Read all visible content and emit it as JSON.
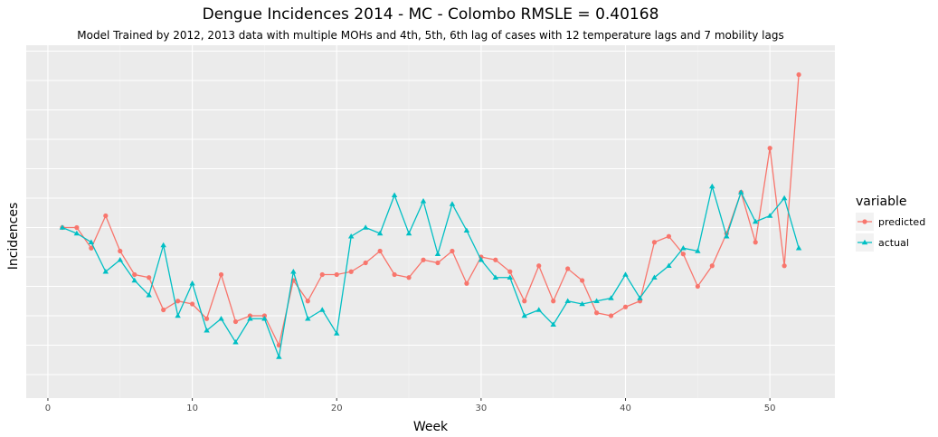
{
  "chart_data": {
    "type": "line",
    "title": "Dengue Incidences 2014 -  MC - Colombo  RMSLE =  0.40168",
    "subtitle": "Model Trained by 2012, 2013 data with multiple MOHs and 4th, 5th, 6th lag of cases with 12 temperature lags and 7 mobility lags",
    "xlabel": "Week",
    "ylabel": "Incidences",
    "xlim": [
      -1.5,
      54.5
    ],
    "ylim": [
      -0.8,
      11.2
    ],
    "x_ticks": [
      0,
      10,
      20,
      30,
      40,
      50
    ],
    "y_gridlines": [
      0,
      1,
      2,
      3,
      4,
      5,
      6,
      7,
      8,
      9,
      10,
      11
    ],
    "y_tick_labels_shown": false,
    "legend": {
      "title": "variable",
      "position": "right"
    },
    "x": [
      1,
      2,
      3,
      4,
      5,
      6,
      7,
      8,
      9,
      10,
      11,
      12,
      13,
      14,
      15,
      16,
      17,
      18,
      19,
      20,
      21,
      22,
      23,
      24,
      25,
      26,
      27,
      28,
      29,
      30,
      31,
      32,
      33,
      34,
      35,
      36,
      37,
      38,
      39,
      40,
      41,
      42,
      43,
      44,
      45,
      46,
      47,
      48,
      49,
      50,
      51,
      52
    ],
    "series": [
      {
        "name": "predicted",
        "color": "#F8766D",
        "marker": "circle",
        "values": [
          5.0,
          5.0,
          4.3,
          5.4,
          4.2,
          3.4,
          3.3,
          2.2,
          2.5,
          2.4,
          1.9,
          3.4,
          1.8,
          2.0,
          2.0,
          1.0,
          3.2,
          2.5,
          3.4,
          3.4,
          3.5,
          3.8,
          4.2,
          3.4,
          3.3,
          3.9,
          3.8,
          4.2,
          3.1,
          4.0,
          3.9,
          3.5,
          2.5,
          3.7,
          2.5,
          3.6,
          3.2,
          2.1,
          2.0,
          2.3,
          2.5,
          4.5,
          4.7,
          4.1,
          3.0,
          3.7,
          4.8,
          6.2,
          4.5,
          7.7,
          3.7,
          10.2
        ]
      },
      {
        "name": "actual",
        "color": "#00BFC4",
        "marker": "triangle",
        "values": [
          5.0,
          4.8,
          4.5,
          3.5,
          3.9,
          3.2,
          2.7,
          4.4,
          2.0,
          3.1,
          1.5,
          1.9,
          1.1,
          1.9,
          1.9,
          0.6,
          3.5,
          1.9,
          2.2,
          1.4,
          4.7,
          5.0,
          4.8,
          6.1,
          4.8,
          5.9,
          4.1,
          5.8,
          4.9,
          3.9,
          3.3,
          3.3,
          2.0,
          2.2,
          1.7,
          2.5,
          2.4,
          2.5,
          2.6,
          3.4,
          2.6,
          3.3,
          3.7,
          4.3,
          4.2,
          6.4,
          4.7,
          6.2,
          5.2,
          5.4,
          6.0,
          4.3
        ]
      }
    ]
  }
}
